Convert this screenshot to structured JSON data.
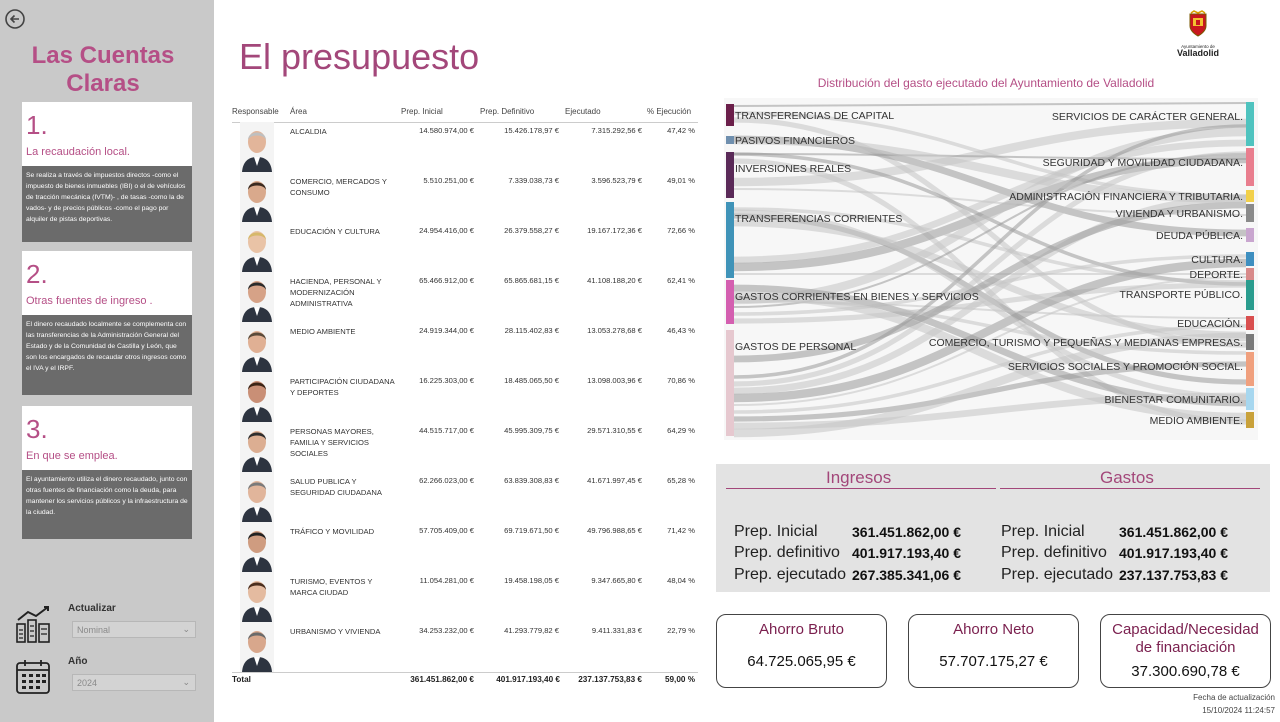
{
  "sidebar": {
    "brand": "Las Cuentas Claras",
    "cards": [
      {
        "num": "1.",
        "title": "La recaudación local.",
        "body": "Se realiza a través de impuestos directos -como el impuesto de bienes inmuebles (IBI) o el de vehículos de tracción mecánica (IVTM)- , de tasas -como la de vados- y de precios públicos -como el pago por alquiler de pistas deportivas."
      },
      {
        "num": "2.",
        "title": "Otras fuentes de ingreso .",
        "body": "El dinero recaudado localmente se complementa con las transferencias de la Administración General del Estado y de la Comunidad de Castilla y León, que son los encargados de recaudar otros ingresos como el IVA y el IRPF."
      },
      {
        "num": "3.",
        "title": "En que se emplea.",
        "body": "El ayuntamiento utiliza el dinero recaudado, junto con otras fuentes de financiación como la deuda, para mantener los servicios públicos y la infraestructura de la ciudad."
      }
    ],
    "controls": {
      "update_label": "Actualizar",
      "update_value": "Nominal",
      "year_label": "Año",
      "year_value": "2024"
    }
  },
  "page": {
    "title": "El presupuesto",
    "logo_small": "Ayuntamiento de",
    "logo_name": "Valladolid"
  },
  "table": {
    "headers": [
      "Responsable",
      "Área",
      "Prep. Inicial",
      "Prep. Definitivo",
      "Ejecutado",
      "% Ejecución"
    ],
    "rows": [
      {
        "area": "ALCALDIA",
        "ini": "14.580.974,00 €",
        "def": "15.426.178,97 €",
        "eje": "7.315.292,56 €",
        "pct": "47,42 %"
      },
      {
        "area": "COMERCIO, MERCADOS Y CONSUMO",
        "ini": "5.510.251,00 €",
        "def": "7.339.038,73 €",
        "eje": "3.596.523,79 €",
        "pct": "49,01 %"
      },
      {
        "area": "EDUCACIÓN Y CULTURA",
        "ini": "24.954.416,00 €",
        "def": "26.379.558,27 €",
        "eje": "19.167.172,36 €",
        "pct": "72,66 %"
      },
      {
        "area": "HACIENDA, PERSONAL Y MODERNIZACIÓN ADMINISTRATIVA",
        "ini": "65.466.912,00 €",
        "def": "65.865.681,15 €",
        "eje": "41.108.188,20 €",
        "pct": "62,41 %"
      },
      {
        "area": "MEDIO AMBIENTE",
        "ini": "24.919.344,00 €",
        "def": "28.115.402,83 €",
        "eje": "13.053.278,68 €",
        "pct": "46,43 %"
      },
      {
        "area": "PARTICIPACIÓN CIUDADANA Y DEPORTES",
        "ini": "16.225.303,00 €",
        "def": "18.485.065,50 €",
        "eje": "13.098.003,96 €",
        "pct": "70,86 %"
      },
      {
        "area": "PERSONAS MAYORES, FAMILIA Y SERVICIOS SOCIALES",
        "ini": "44.515.717,00 €",
        "def": "45.995.309,75 €",
        "eje": "29.571.310,55 €",
        "pct": "64,29 %"
      },
      {
        "area": "SALUD PUBLICA Y SEGURIDAD CIUDADANA",
        "ini": "62.266.023,00 €",
        "def": "63.839.308,83 €",
        "eje": "41.671.997,45 €",
        "pct": "65,28 %"
      },
      {
        "area": "TRÁFICO Y MOVILIDAD",
        "ini": "57.705.409,00 €",
        "def": "69.719.671,50 €",
        "eje": "49.796.988,65 €",
        "pct": "71,42 %"
      },
      {
        "area": "TURISMO, EVENTOS Y MARCA CIUDAD",
        "ini": "11.054.281,00 €",
        "def": "19.458.198,05 €",
        "eje": "9.347.665,80 €",
        "pct": "48,04 %"
      },
      {
        "area": "URBANISMO Y VIVIENDA",
        "ini": "34.253.232,00 €",
        "def": "41.293.779,82 €",
        "eje": "9.411.331,83 €",
        "pct": "22,79 %"
      }
    ],
    "total": {
      "label": "Total",
      "ini": "361.451.862,00 €",
      "def": "401.917.193,40 €",
      "eje": "237.137.753,83 €",
      "pct": "59,00 %"
    }
  },
  "sankey": {
    "title": "Distribución del gasto ejecutado del  Ayuntamiento de Valladolid",
    "left": [
      "TRANSFERENCIAS DE CAPITAL",
      "PASIVOS FINANCIEROS",
      "INVERSIONES REALES",
      "TRANSFERENCIAS CORRIENTES",
      "GASTOS CORRIENTES EN BIENES Y SERVICIOS",
      "GASTOS DE PERSONAL"
    ],
    "right": [
      "SERVICIOS DE CARÁCTER GENERAL.",
      "SEGURIDAD Y MOVILIDAD CIUDADANA.",
      "ADMINISTRACIÓN FINANCIERA Y TRIBUTARIA.",
      "VIVIENDA Y URBANISMO.",
      "DEUDA PÚBLICA.",
      "CULTURA.",
      "DEPORTE.",
      "TRANSPORTE PÚBLICO.",
      "EDUCACIÓN.",
      "COMERCIO, TURISMO Y PEQUEÑAS Y MEDIANAS EMPRESAS.",
      "SERVICIOS SOCIALES Y PROMOCIÓN SOCIAL.",
      "BIENESTAR COMUNITARIO.",
      "MEDIO AMBIENTE."
    ],
    "left_colors": [
      "#6b1f4a",
      "#6f8fae",
      "#5a2a58",
      "#3f93b8",
      "#d45fb0",
      "#e6c8cf"
    ],
    "right_colors": [
      "#4fc3bf",
      "#e97e8e",
      "#f2d04a",
      "#8a8a8a",
      "#c9a6cf",
      "#3e8fc0",
      "#d88a8a",
      "#2a9c8e",
      "#d94f4f",
      "#7a7a7a",
      "#f0a07e",
      "#a7d7ef",
      "#c9a13a"
    ]
  },
  "summary": {
    "ingresos": {
      "title": "Ingresos",
      "labels": [
        "Prep. Inicial",
        "Prep. definitivo",
        "Prep. ejecutado"
      ],
      "values": [
        "361.451.862,00 €",
        "401.917.193,40 €",
        "267.385.341,06 €"
      ]
    },
    "gastos": {
      "title": "Gastos",
      "labels": [
        "Prep. Inicial",
        "Prep. definitivo",
        "Prep. ejecutado"
      ],
      "values": [
        "361.451.862,00 €",
        "401.917.193,40 €",
        "237.137.753,83 €"
      ]
    }
  },
  "kpis": [
    {
      "title": "Ahorro Bruto",
      "value": "64.725.065,95 €"
    },
    {
      "title": "Ahorro Neto",
      "value": "57.707.175,27 €"
    },
    {
      "title": "Capacidad/Necesidad de financiación",
      "value": "37.300.690,78 €"
    }
  ],
  "update": {
    "label": "Fecha de actualización",
    "date": "15/10/2024 11:24:57"
  }
}
